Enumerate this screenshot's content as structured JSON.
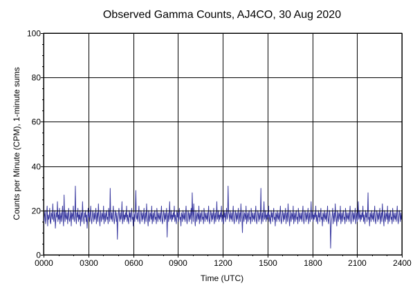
{
  "chart_data": {
    "type": "line",
    "title": "Observed Gamma Counts, AJ4CO, 30 Aug 2020",
    "xlabel": "Time (UTC)",
    "ylabel": "Counts per Minute (CPM), 1-minute sums",
    "x_ticks": [
      "0000",
      "0300",
      "0600",
      "0900",
      "1200",
      "1500",
      "1800",
      "2100",
      "2400"
    ],
    "y_ticks": [
      0,
      20,
      40,
      60,
      80,
      100
    ],
    "xlim": [
      0,
      24
    ],
    "ylim": [
      0,
      100
    ],
    "grid": true,
    "reference_line_y": 20,
    "line_color": "#3a3aa0",
    "series": [
      {
        "x_unit": "hours",
        "values": [
          17,
          15,
          18,
          20,
          14,
          16,
          19,
          22,
          13,
          18,
          16,
          17,
          21,
          15,
          14,
          19,
          18,
          16,
          23,
          17,
          15,
          18,
          20,
          12,
          16,
          19,
          17,
          24,
          15,
          18,
          16,
          21,
          14,
          17,
          19,
          15,
          18,
          22,
          16,
          13,
          27,
          18,
          15,
          20,
          17,
          16,
          19,
          14,
          18,
          21,
          16,
          15,
          17,
          20,
          13,
          19,
          18,
          16,
          22,
          17,
          15,
          18,
          31,
          16,
          14,
          19,
          17,
          21,
          15,
          18,
          16,
          20,
          13,
          17,
          19,
          15,
          24,
          18,
          16,
          14,
          19,
          17,
          20,
          15,
          18,
          12,
          16,
          21,
          17,
          19,
          15,
          18,
          22,
          16,
          14,
          17,
          20,
          18,
          15,
          19,
          16,
          18,
          21,
          14,
          17,
          19,
          15,
          23,
          18,
          16,
          13,
          20,
          17,
          15,
          19,
          18,
          16,
          22,
          14,
          17,
          19,
          15,
          18,
          20,
          16,
          17,
          14,
          21,
          18,
          15,
          30,
          17,
          16,
          19,
          15,
          18,
          22,
          16,
          14,
          17,
          20,
          18,
          15,
          19,
          7,
          16,
          18,
          21,
          17,
          15,
          19,
          16,
          18,
          24,
          14,
          17,
          20,
          15,
          18,
          16,
          19,
          17,
          22,
          15,
          18,
          16,
          14,
          20,
          17,
          19,
          15,
          18,
          21,
          16,
          17,
          13,
          19,
          18,
          15,
          20,
          29,
          17,
          16,
          19,
          15,
          18,
          22,
          16,
          14,
          17,
          20,
          18,
          15,
          19,
          16,
          18,
          21,
          14,
          17,
          19,
          15,
          23,
          18,
          16,
          13,
          20,
          17,
          15,
          19,
          18,
          16,
          22,
          14,
          17,
          19,
          15,
          18,
          20,
          16,
          17,
          14,
          21,
          18,
          15,
          19,
          17,
          16,
          19,
          15,
          18,
          22,
          16,
          14,
          17,
          20,
          18,
          15,
          19,
          16,
          18,
          21,
          8,
          17,
          19,
          15,
          18,
          24,
          16,
          17,
          20,
          15,
          18,
          16,
          19,
          17,
          22,
          15,
          18,
          16,
          14,
          20,
          17,
          19,
          15,
          18,
          21,
          16,
          17,
          13,
          19,
          18,
          15,
          20,
          17,
          16,
          19,
          15,
          18,
          22,
          16,
          14,
          17,
          20,
          18,
          15,
          19,
          16,
          18,
          21,
          14,
          28,
          19,
          15,
          23,
          18,
          16,
          13,
          20,
          17,
          15,
          19,
          18,
          16,
          22,
          14,
          17,
          19,
          15,
          18,
          20,
          16,
          17,
          14,
          21,
          18,
          15,
          19,
          17,
          16,
          19,
          15,
          18,
          22,
          16,
          14,
          17,
          20,
          18,
          15,
          19,
          16,
          18,
          21,
          14,
          17,
          19,
          15,
          18,
          24,
          16,
          17,
          20,
          15,
          18,
          16,
          19,
          17,
          22,
          15,
          18,
          16,
          14,
          20,
          17,
          19,
          15,
          18,
          21,
          16,
          17,
          31,
          19,
          18,
          15,
          20,
          17,
          16,
          19,
          15,
          18,
          22,
          16,
          14,
          17,
          20,
          18,
          15,
          19,
          16,
          18,
          21,
          14,
          17,
          19,
          15,
          23,
          18,
          16,
          10,
          20,
          17,
          15,
          19,
          18,
          16,
          22,
          14,
          17,
          19,
          15,
          18,
          20,
          16,
          17,
          14,
          21,
          18,
          15,
          19,
          17,
          16,
          19,
          15,
          18,
          22,
          16,
          14,
          17,
          20,
          18,
          15,
          19,
          16,
          18,
          30,
          14,
          17,
          19,
          15,
          18,
          24,
          16,
          17,
          20,
          15,
          18,
          16,
          19,
          17,
          22,
          15,
          18,
          16,
          14,
          20,
          17,
          19,
          15,
          18,
          21,
          16,
          17,
          13,
          19,
          18,
          15,
          20,
          17,
          16,
          19,
          15,
          18,
          22,
          16,
          14,
          17,
          20,
          18,
          15,
          19,
          16,
          18,
          21,
          14,
          17,
          19,
          15,
          23,
          18,
          16,
          13,
          20,
          17,
          15,
          19,
          18,
          16,
          22,
          14,
          17,
          19,
          15,
          18,
          20,
          16,
          17,
          14,
          21,
          18,
          15,
          19,
          17,
          16,
          19,
          15,
          18,
          22,
          16,
          14,
          17,
          20,
          18,
          15,
          19,
          16,
          18,
          21,
          14,
          17,
          19,
          15,
          18,
          24,
          16,
          17,
          20,
          15,
          18,
          16,
          19,
          17,
          22,
          15,
          18,
          16,
          14,
          20,
          17,
          19,
          15,
          18,
          21,
          16,
          17,
          13,
          19,
          18,
          15,
          20,
          17,
          16,
          19,
          15,
          18,
          22,
          16,
          14,
          17,
          20,
          18,
          3,
          12,
          16,
          18,
          21,
          14,
          17,
          19,
          15,
          23,
          18,
          16,
          13,
          20,
          17,
          15,
          19,
          18,
          16,
          22,
          14,
          17,
          19,
          15,
          18,
          20,
          16,
          17,
          14,
          21,
          18,
          15,
          19,
          17,
          16,
          19,
          15,
          18,
          22,
          16,
          14,
          17,
          20,
          18,
          15,
          19,
          16,
          18,
          21,
          14,
          17,
          19,
          15,
          18,
          24,
          16,
          17,
          20,
          15,
          18,
          16,
          19,
          17,
          22,
          15,
          18,
          16,
          14,
          20,
          17,
          19,
          15,
          18,
          28,
          16,
          17,
          13,
          19,
          18,
          15,
          20,
          17,
          16,
          19,
          15,
          18,
          22,
          16,
          14,
          17,
          20,
          18,
          15,
          19,
          16,
          18,
          21,
          14,
          17,
          19,
          15,
          23,
          18,
          16,
          13,
          20,
          17,
          15,
          19,
          18,
          16,
          22,
          14,
          17,
          19,
          15,
          18,
          20,
          16,
          17,
          14,
          21,
          18,
          15,
          19,
          17,
          16,
          19,
          15,
          18,
          22,
          16,
          14,
          17,
          20,
          18,
          15,
          19,
          16,
          18
        ]
      }
    ]
  }
}
